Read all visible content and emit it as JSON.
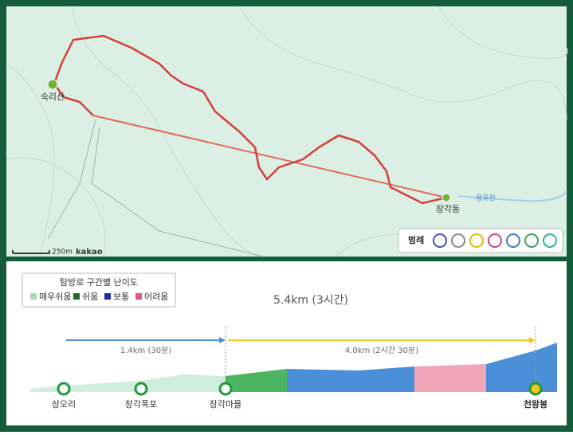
{
  "map": {
    "peak": "숙리산",
    "village": "장각동",
    "stream": "용유천",
    "scale": "250m",
    "brand": "kakao",
    "legend_title": "범례"
  },
  "profile": {
    "legend_title": "탐방로 구간별 난이도",
    "levels": [
      {
        "name": "매우쉬움",
        "color": "#a9d9b4"
      },
      {
        "name": "쉬움",
        "color": "#1e6b2e"
      },
      {
        "name": "보통",
        "color": "#1b2f9e"
      },
      {
        "name": "어려움",
        "color": "#e8508a"
      }
    ],
    "total": "5.4km (3시간)",
    "segments": [
      {
        "label": "1.4km (30분)",
        "color": "#4f8fcf"
      },
      {
        "label": "4.0km (2시간 30분)",
        "color": "#f2c81b"
      }
    ],
    "points": [
      "상오리",
      "장각폭포",
      "장각마을",
      "천왕봉"
    ]
  }
}
